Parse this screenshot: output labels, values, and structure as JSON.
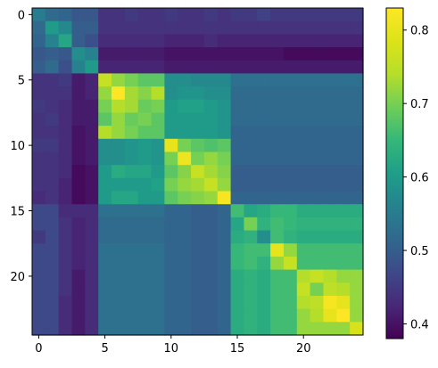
{
  "chart_data": [
    {
      "type": "heatmap",
      "rows": 25,
      "cols": 25,
      "x_ticks": [
        0,
        5,
        10,
        15,
        20
      ],
      "y_ticks": [
        0,
        5,
        10,
        15,
        20
      ],
      "x_tick_labels": [
        "0",
        "5",
        "10",
        "15",
        "20"
      ],
      "y_tick_labels": [
        "0",
        "5",
        "10",
        "15",
        "20"
      ],
      "colormap": "viridis",
      "colorbar": {
        "range": [
          0.38,
          0.83
        ],
        "ticks": [
          0.4,
          0.5,
          0.6,
          0.7,
          0.8
        ],
        "tick_labels": [
          "0.4",
          "0.5",
          "0.6",
          "0.7",
          "0.8"
        ],
        "position": "right"
      },
      "values": [
        [
          0.55,
          0.52,
          0.51,
          0.49,
          0.49,
          0.44,
          0.44,
          0.45,
          0.44,
          0.44,
          0.45,
          0.44,
          0.44,
          0.45,
          0.44,
          0.45,
          0.45,
          0.46,
          0.45,
          0.45,
          0.45,
          0.45,
          0.45,
          0.45,
          0.45
        ],
        [
          0.52,
          0.6,
          0.57,
          0.5,
          0.5,
          0.44,
          0.44,
          0.44,
          0.44,
          0.44,
          0.44,
          0.44,
          0.44,
          0.44,
          0.44,
          0.44,
          0.44,
          0.44,
          0.44,
          0.44,
          0.44,
          0.44,
          0.44,
          0.44,
          0.44
        ],
        [
          0.51,
          0.56,
          0.62,
          0.5,
          0.48,
          0.43,
          0.43,
          0.43,
          0.43,
          0.43,
          0.42,
          0.42,
          0.42,
          0.43,
          0.42,
          0.42,
          0.42,
          0.42,
          0.42,
          0.42,
          0.42,
          0.42,
          0.42,
          0.42,
          0.42
        ],
        [
          0.49,
          0.5,
          0.49,
          0.58,
          0.56,
          0.41,
          0.41,
          0.41,
          0.41,
          0.41,
          0.4,
          0.4,
          0.4,
          0.4,
          0.4,
          0.4,
          0.4,
          0.4,
          0.4,
          0.39,
          0.39,
          0.39,
          0.39,
          0.39,
          0.39
        ],
        [
          0.5,
          0.52,
          0.48,
          0.56,
          0.6,
          0.42,
          0.42,
          0.42,
          0.42,
          0.42,
          0.41,
          0.41,
          0.41,
          0.41,
          0.41,
          0.41,
          0.41,
          0.41,
          0.41,
          0.41,
          0.41,
          0.41,
          0.41,
          0.41,
          0.41
        ],
        [
          0.44,
          0.44,
          0.45,
          0.41,
          0.42,
          0.76,
          0.72,
          0.7,
          0.68,
          0.68,
          0.58,
          0.58,
          0.57,
          0.57,
          0.57,
          0.53,
          0.53,
          0.53,
          0.53,
          0.53,
          0.53,
          0.53,
          0.53,
          0.53,
          0.53
        ],
        [
          0.44,
          0.44,
          0.44,
          0.41,
          0.42,
          0.72,
          0.83,
          0.73,
          0.71,
          0.74,
          0.58,
          0.59,
          0.59,
          0.58,
          0.58,
          0.52,
          0.52,
          0.52,
          0.52,
          0.52,
          0.52,
          0.52,
          0.52,
          0.52,
          0.52
        ],
        [
          0.45,
          0.44,
          0.43,
          0.41,
          0.41,
          0.7,
          0.74,
          0.73,
          0.69,
          0.7,
          0.6,
          0.61,
          0.61,
          0.6,
          0.59,
          0.52,
          0.52,
          0.52,
          0.52,
          0.52,
          0.52,
          0.52,
          0.52,
          0.52,
          0.52
        ],
        [
          0.44,
          0.45,
          0.43,
          0.41,
          0.41,
          0.68,
          0.72,
          0.69,
          0.7,
          0.68,
          0.6,
          0.6,
          0.6,
          0.6,
          0.59,
          0.52,
          0.52,
          0.52,
          0.52,
          0.52,
          0.52,
          0.52,
          0.52,
          0.52,
          0.52
        ],
        [
          0.44,
          0.44,
          0.43,
          0.4,
          0.41,
          0.74,
          0.72,
          0.7,
          0.68,
          0.68,
          0.6,
          0.6,
          0.6,
          0.6,
          0.59,
          0.51,
          0.51,
          0.51,
          0.51,
          0.51,
          0.51,
          0.51,
          0.51,
          0.51,
          0.51
        ],
        [
          0.45,
          0.45,
          0.43,
          0.4,
          0.41,
          0.58,
          0.58,
          0.59,
          0.6,
          0.59,
          0.8,
          0.7,
          0.68,
          0.67,
          0.68,
          0.51,
          0.51,
          0.51,
          0.51,
          0.51,
          0.51,
          0.51,
          0.51,
          0.51,
          0.51
        ],
        [
          0.44,
          0.44,
          0.43,
          0.4,
          0.41,
          0.58,
          0.58,
          0.59,
          0.6,
          0.59,
          0.7,
          0.81,
          0.7,
          0.72,
          0.7,
          0.51,
          0.51,
          0.51,
          0.51,
          0.51,
          0.51,
          0.51,
          0.51,
          0.51,
          0.51
        ],
        [
          0.44,
          0.44,
          0.43,
          0.39,
          0.4,
          0.6,
          0.63,
          0.62,
          0.62,
          0.6,
          0.68,
          0.71,
          0.76,
          0.73,
          0.71,
          0.5,
          0.5,
          0.5,
          0.5,
          0.5,
          0.5,
          0.5,
          0.5,
          0.5,
          0.5
        ],
        [
          0.44,
          0.44,
          0.42,
          0.39,
          0.4,
          0.6,
          0.6,
          0.6,
          0.6,
          0.61,
          0.7,
          0.72,
          0.73,
          0.76,
          0.72,
          0.5,
          0.5,
          0.5,
          0.5,
          0.5,
          0.5,
          0.5,
          0.5,
          0.5,
          0.5
        ],
        [
          0.43,
          0.44,
          0.42,
          0.39,
          0.4,
          0.6,
          0.62,
          0.62,
          0.6,
          0.6,
          0.68,
          0.7,
          0.71,
          0.72,
          0.82,
          0.51,
          0.51,
          0.51,
          0.51,
          0.51,
          0.51,
          0.51,
          0.51,
          0.51,
          0.51
        ],
        [
          0.47,
          0.47,
          0.43,
          0.43,
          0.43,
          0.53,
          0.53,
          0.53,
          0.53,
          0.53,
          0.51,
          0.51,
          0.5,
          0.5,
          0.51,
          0.66,
          0.62,
          0.63,
          0.65,
          0.65,
          0.63,
          0.63,
          0.63,
          0.63,
          0.63
        ],
        [
          0.47,
          0.47,
          0.44,
          0.42,
          0.43,
          0.52,
          0.52,
          0.52,
          0.52,
          0.52,
          0.51,
          0.51,
          0.5,
          0.5,
          0.51,
          0.62,
          0.7,
          0.64,
          0.66,
          0.65,
          0.64,
          0.64,
          0.64,
          0.64,
          0.64
        ],
        [
          0.45,
          0.47,
          0.44,
          0.42,
          0.43,
          0.52,
          0.52,
          0.52,
          0.52,
          0.52,
          0.51,
          0.51,
          0.5,
          0.5,
          0.51,
          0.63,
          0.64,
          0.58,
          0.66,
          0.64,
          0.63,
          0.63,
          0.63,
          0.63,
          0.63
        ],
        [
          0.47,
          0.47,
          0.44,
          0.42,
          0.43,
          0.53,
          0.53,
          0.53,
          0.53,
          0.53,
          0.51,
          0.51,
          0.5,
          0.5,
          0.51,
          0.65,
          0.66,
          0.66,
          0.8,
          0.72,
          0.66,
          0.66,
          0.66,
          0.66,
          0.66
        ],
        [
          0.47,
          0.47,
          0.44,
          0.42,
          0.43,
          0.53,
          0.53,
          0.53,
          0.53,
          0.53,
          0.51,
          0.51,
          0.5,
          0.5,
          0.51,
          0.65,
          0.66,
          0.64,
          0.72,
          0.76,
          0.66,
          0.66,
          0.66,
          0.66,
          0.66
        ],
        [
          0.47,
          0.47,
          0.44,
          0.41,
          0.43,
          0.53,
          0.53,
          0.53,
          0.53,
          0.53,
          0.51,
          0.51,
          0.5,
          0.5,
          0.51,
          0.63,
          0.64,
          0.63,
          0.66,
          0.66,
          0.74,
          0.76,
          0.74,
          0.72,
          0.72
        ],
        [
          0.47,
          0.47,
          0.44,
          0.41,
          0.43,
          0.53,
          0.53,
          0.53,
          0.53,
          0.53,
          0.51,
          0.51,
          0.5,
          0.5,
          0.51,
          0.63,
          0.64,
          0.63,
          0.66,
          0.66,
          0.76,
          0.7,
          0.75,
          0.74,
          0.72
        ],
        [
          0.47,
          0.47,
          0.43,
          0.41,
          0.43,
          0.53,
          0.53,
          0.53,
          0.53,
          0.53,
          0.51,
          0.51,
          0.5,
          0.5,
          0.51,
          0.63,
          0.64,
          0.63,
          0.66,
          0.66,
          0.74,
          0.75,
          0.82,
          0.8,
          0.72
        ],
        [
          0.47,
          0.47,
          0.43,
          0.41,
          0.43,
          0.53,
          0.53,
          0.53,
          0.53,
          0.53,
          0.51,
          0.51,
          0.5,
          0.5,
          0.51,
          0.63,
          0.64,
          0.63,
          0.66,
          0.66,
          0.72,
          0.74,
          0.8,
          0.83,
          0.72
        ],
        [
          0.47,
          0.47,
          0.43,
          0.41,
          0.43,
          0.53,
          0.53,
          0.53,
          0.53,
          0.53,
          0.51,
          0.51,
          0.5,
          0.5,
          0.51,
          0.63,
          0.64,
          0.63,
          0.66,
          0.66,
          0.72,
          0.72,
          0.72,
          0.72,
          0.78
        ]
      ]
    }
  ]
}
